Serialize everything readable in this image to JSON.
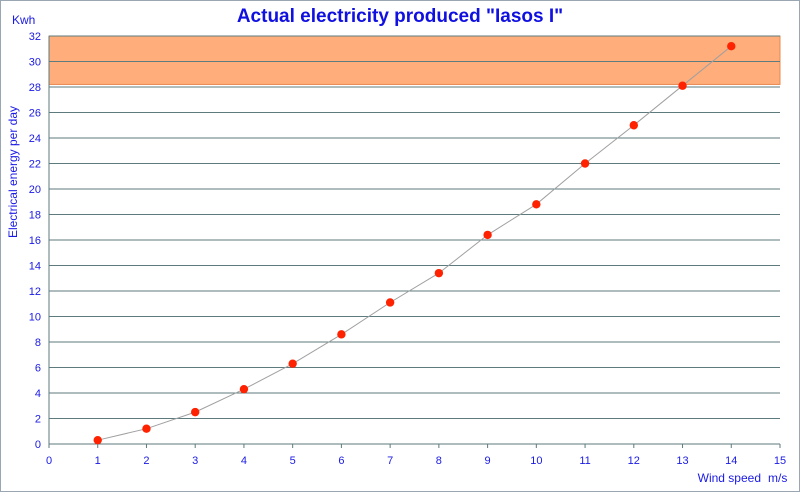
{
  "chart_data": {
    "type": "line",
    "title": "Actual electricity produced \"Iasos I\"",
    "xlabel": "Wind speed",
    "x_unit": "m/s",
    "ylabel": "Electrical energy per day",
    "y_unit": "Kwh",
    "xlim": [
      0,
      15
    ],
    "ylim": [
      0,
      32
    ],
    "x_ticks": [
      0,
      1,
      2,
      3,
      4,
      5,
      6,
      7,
      8,
      9,
      10,
      11,
      12,
      13,
      14,
      15
    ],
    "y_ticks": [
      0,
      2,
      4,
      6,
      8,
      10,
      12,
      14,
      16,
      18,
      20,
      22,
      24,
      26,
      28,
      30,
      32
    ],
    "grid": "horizontal",
    "highlight_band": {
      "y_from": 28.2,
      "y_to": 32,
      "color": "#ffad7a"
    },
    "series": [
      {
        "x": [
          1,
          2,
          3,
          4,
          5,
          6,
          7,
          8,
          9,
          10,
          11,
          12,
          13,
          14
        ],
        "y": [
          0.3,
          1.2,
          2.5,
          4.3,
          6.3,
          8.6,
          11.1,
          13.4,
          16.4,
          18.8,
          22.0,
          25.0,
          28.1,
          31.2
        ],
        "marker_color": "#ff2200",
        "line_color": "#a0a0a0"
      }
    ]
  }
}
